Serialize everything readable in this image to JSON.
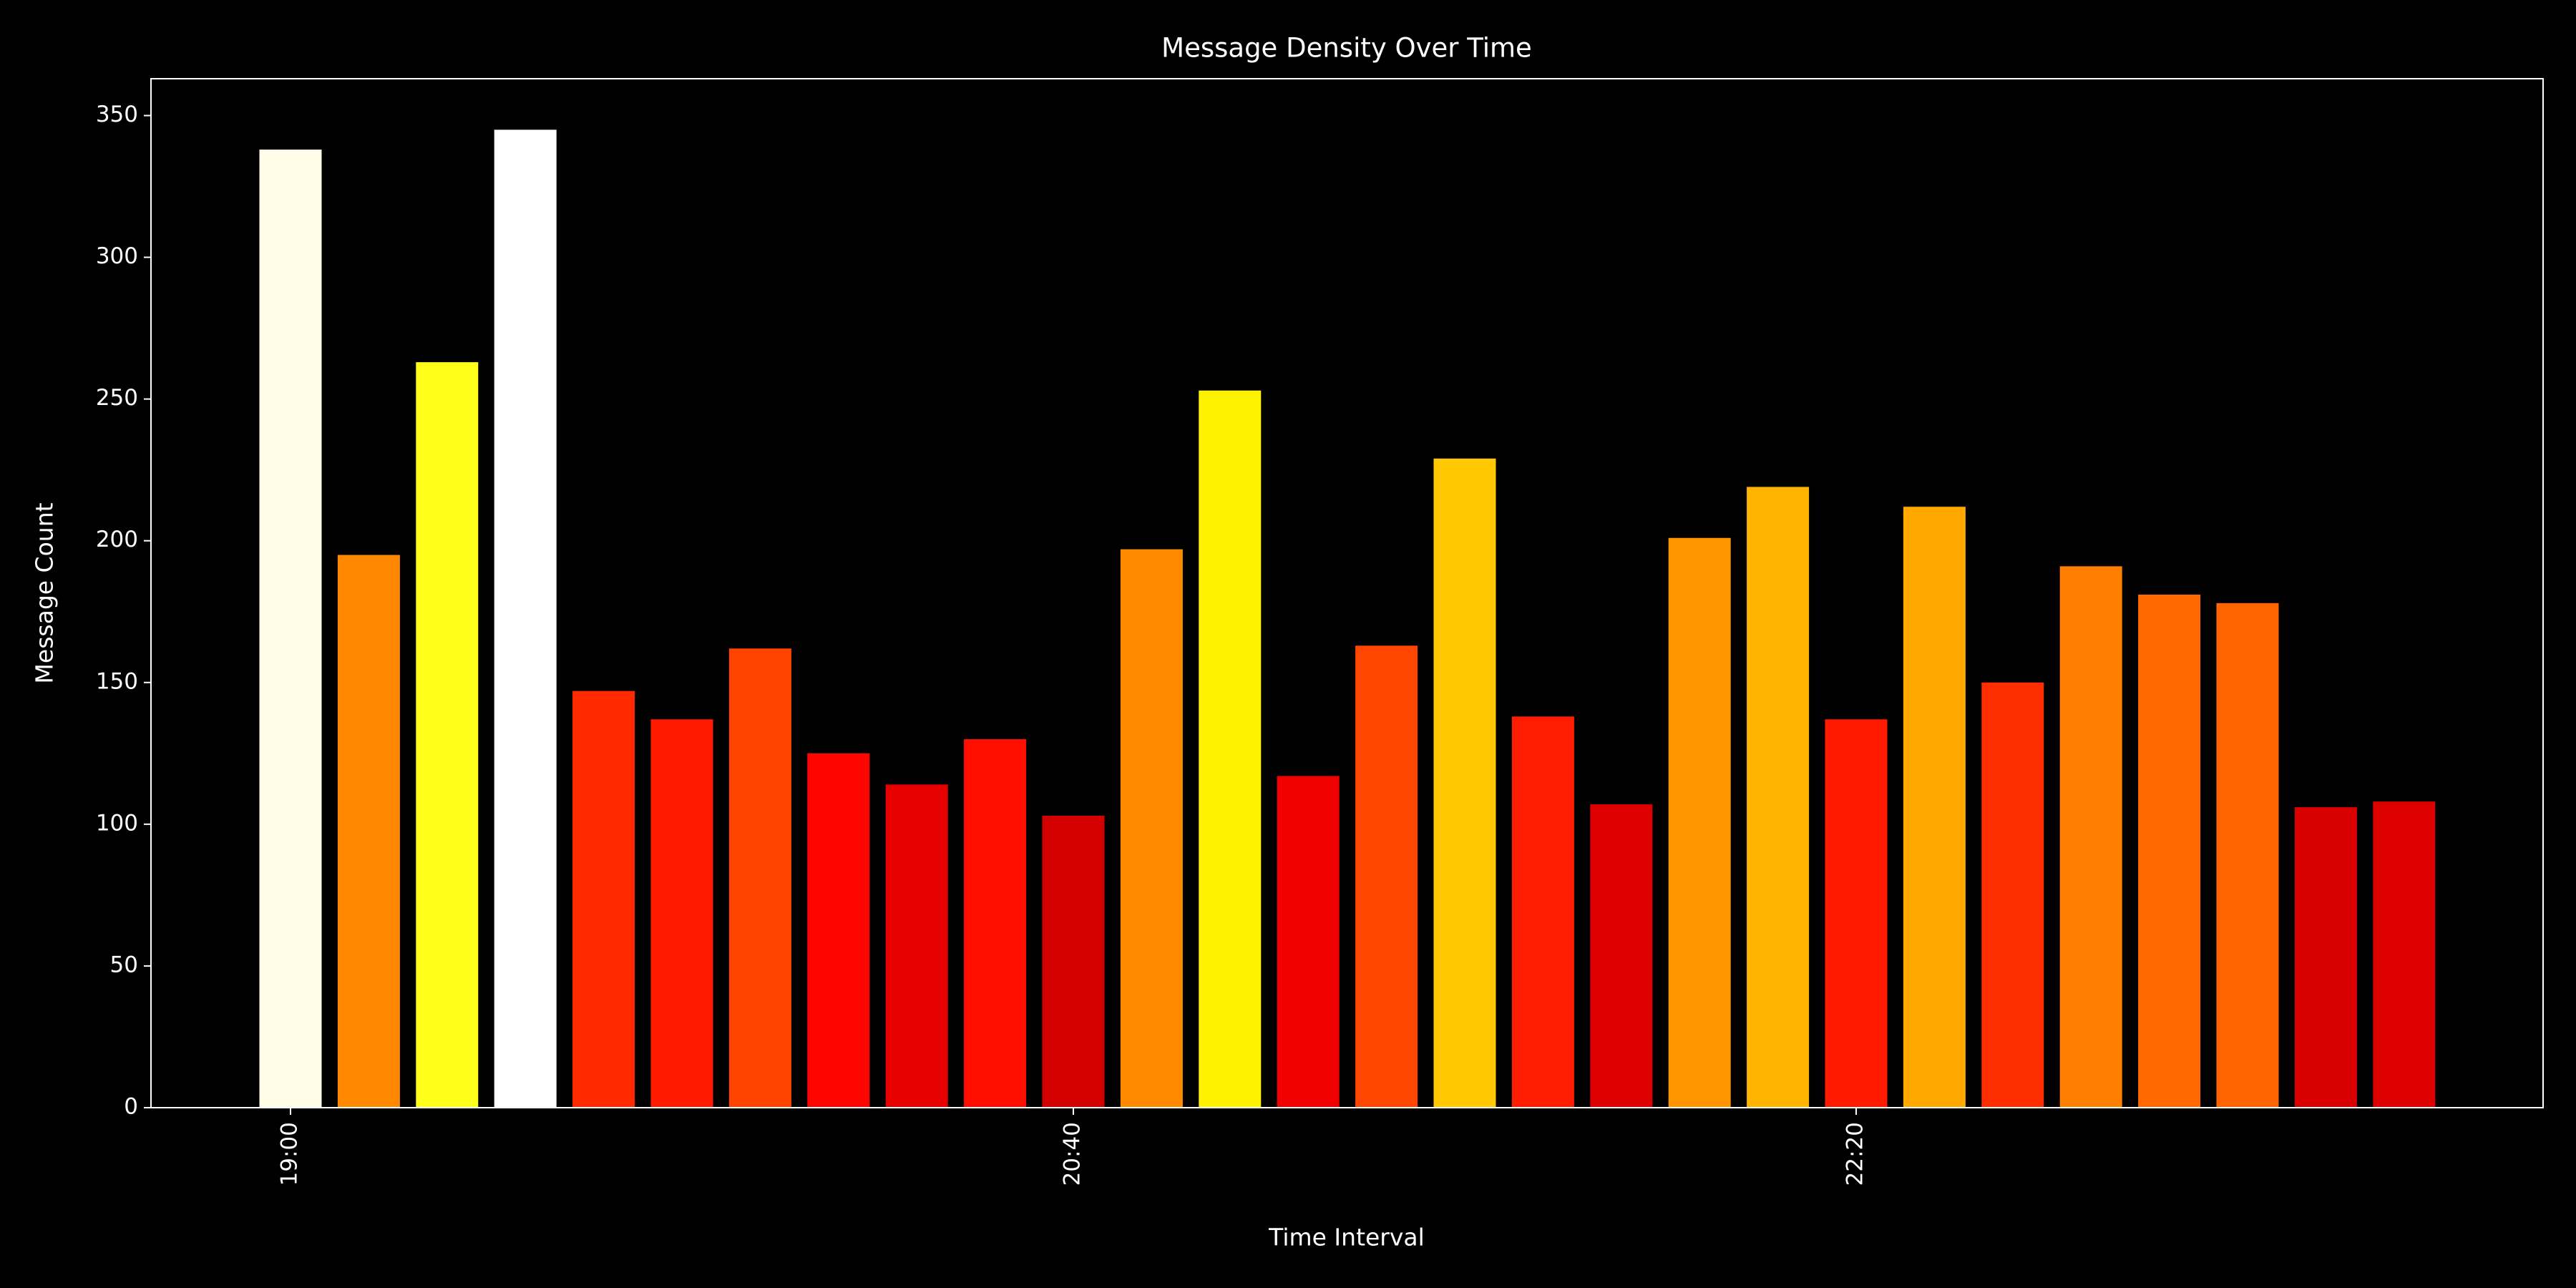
{
  "chart_data": {
    "type": "bar",
    "title": "Message Density Over Time",
    "x_label": "Time Interval",
    "y_label": "Message Count",
    "categories": [
      "19:00",
      null,
      null,
      null,
      null,
      null,
      null,
      null,
      null,
      null,
      "20:40",
      null,
      null,
      null,
      null,
      null,
      null,
      null,
      null,
      null,
      "22:20",
      null,
      null,
      null,
      null,
      null,
      null,
      null
    ],
    "values": [
      338,
      195,
      263,
      345,
      147,
      137,
      162,
      125,
      114,
      130,
      103,
      197,
      253,
      117,
      163,
      229,
      138,
      107,
      201,
      219,
      137,
      212,
      150,
      191,
      181,
      178,
      106,
      108
    ],
    "colors": [
      "#fffde8",
      "#ff8800",
      "#ffff1a",
      "#ffffff",
      "#ff2a00",
      "#ff1a00",
      "#ff4400",
      "#ff0500",
      "#e60000",
      "#ff0e00",
      "#d20000",
      "#ff8a00",
      "#fff200",
      "#f00000",
      "#ff4600",
      "#ffc800",
      "#ff1c00",
      "#de0000",
      "#ff9500",
      "#ffb400",
      "#ff1a00",
      "#ffa800",
      "#ff2e00",
      "#ff7f00",
      "#ff6900",
      "#ff6400",
      "#d80000",
      "#dd0000"
    ],
    "ylim": [
      0,
      363
    ],
    "yticks": [
      0,
      50,
      100,
      150,
      200,
      250,
      300,
      350
    ]
  }
}
